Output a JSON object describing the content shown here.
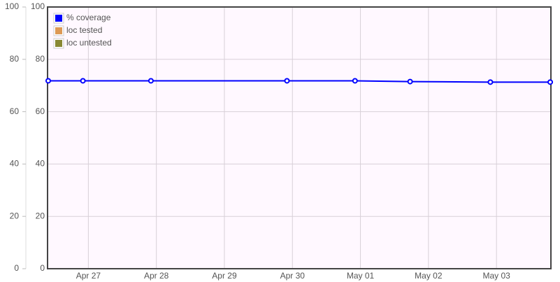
{
  "chart_data": {
    "type": "line",
    "x": [
      26.41,
      26.92,
      27.92,
      29.92,
      30.92,
      31.73,
      32.91,
      33.79
    ],
    "xlim": [
      26.4,
      33.8
    ],
    "xticks": [
      {
        "value": 27,
        "label": "Apr 27"
      },
      {
        "value": 28,
        "label": "Apr 28"
      },
      {
        "value": 29,
        "label": "Apr 29"
      },
      {
        "value": 30,
        "label": "Apr 30"
      },
      {
        "value": 31,
        "label": "May 01"
      },
      {
        "value": 32,
        "label": "May 02"
      },
      {
        "value": 33,
        "label": "May 03"
      }
    ],
    "ylim": [
      0,
      100
    ],
    "yticks": [
      0,
      20,
      40,
      60,
      80,
      100
    ],
    "y2lim": [
      0,
      100
    ],
    "y2ticks": [
      0,
      20,
      40,
      60,
      80,
      100
    ],
    "grid": true,
    "legend": "top-left",
    "series": [
      {
        "name": "% coverage",
        "color": "#0000ff",
        "values": [
          71.8,
          71.8,
          71.8,
          71.8,
          71.8,
          71.5,
          71.3,
          71.3
        ]
      },
      {
        "name": "loc tested",
        "color": "#dd9955",
        "values": [
          null,
          null,
          null,
          null,
          null,
          null,
          null,
          null
        ]
      },
      {
        "name": "loc untested",
        "color": "#888833",
        "values": [
          null,
          null,
          null,
          null,
          null,
          null,
          null,
          null
        ]
      }
    ]
  }
}
